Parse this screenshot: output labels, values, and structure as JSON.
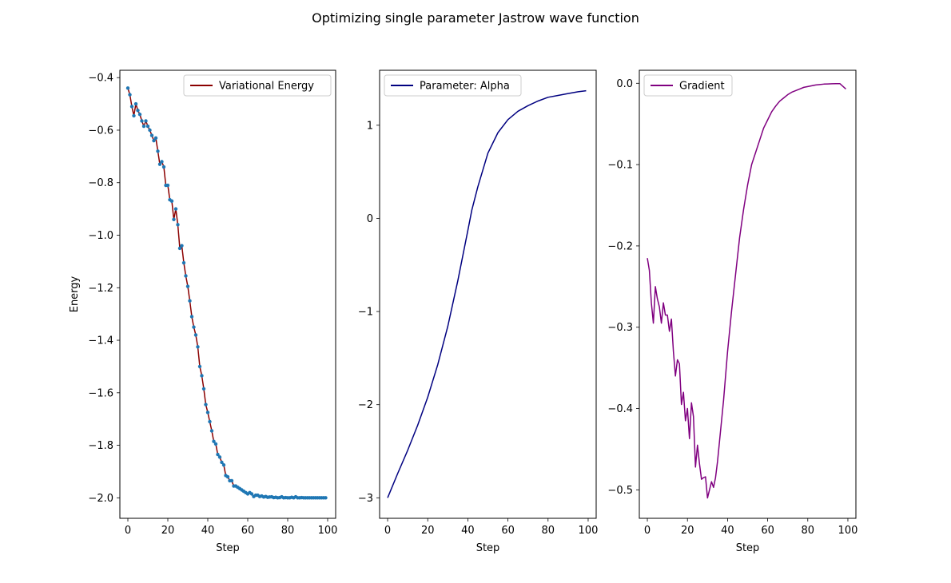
{
  "figure": {
    "suptitle": "Optimizing single parameter Jastrow wave function"
  },
  "chart_data": [
    {
      "type": "line",
      "xlabel": "Step",
      "ylabel": "Energy",
      "xlim": [
        -4,
        104
      ],
      "ylim": [
        -2.078,
        -0.372
      ],
      "xticks": [
        0,
        20,
        40,
        60,
        80,
        100
      ],
      "yticks": [
        -2.0,
        -1.8,
        -1.6,
        -1.4,
        -1.2,
        -1.0,
        -0.8,
        -0.6,
        -0.4
      ],
      "legend_position": "upper right",
      "series": [
        {
          "name": "Variational Energy",
          "color": "#8b0000",
          "marker_color": "#1f77b4",
          "markers": true,
          "x": [
            0,
            1,
            2,
            3,
            4,
            5,
            6,
            7,
            8,
            9,
            10,
            11,
            12,
            13,
            14,
            15,
            16,
            17,
            18,
            19,
            20,
            21,
            22,
            23,
            24,
            25,
            26,
            27,
            28,
            29,
            30,
            31,
            32,
            33,
            34,
            35,
            36,
            37,
            38,
            39,
            40,
            41,
            42,
            43,
            44,
            45,
            46,
            47,
            48,
            49,
            50,
            51,
            52,
            53,
            54,
            55,
            56,
            57,
            58,
            59,
            60,
            61,
            62,
            63,
            64,
            65,
            66,
            67,
            68,
            69,
            70,
            71,
            72,
            73,
            74,
            75,
            76,
            77,
            78,
            79,
            80,
            81,
            82,
            83,
            84,
            85,
            86,
            87,
            88,
            89,
            90,
            91,
            92,
            93,
            94,
            95,
            96,
            97,
            98,
            99
          ],
          "y": [
            -0.44,
            -0.465,
            -0.51,
            -0.545,
            -0.5,
            -0.525,
            -0.54,
            -0.565,
            -0.585,
            -0.565,
            -0.585,
            -0.6,
            -0.62,
            -0.64,
            -0.63,
            -0.68,
            -0.73,
            -0.72,
            -0.74,
            -0.81,
            -0.81,
            -0.865,
            -0.87,
            -0.94,
            -0.9,
            -0.96,
            -1.05,
            -1.04,
            -1.105,
            -1.155,
            -1.195,
            -1.25,
            -1.31,
            -1.35,
            -1.38,
            -1.425,
            -1.5,
            -1.535,
            -1.585,
            -1.645,
            -1.675,
            -1.71,
            -1.745,
            -1.785,
            -1.795,
            -1.835,
            -1.845,
            -1.865,
            -1.875,
            -1.915,
            -1.92,
            -1.935,
            -1.935,
            -1.955,
            -1.955,
            -1.96,
            -1.965,
            -1.97,
            -1.975,
            -1.98,
            -1.985,
            -1.98,
            -1.985,
            -1.995,
            -1.99,
            -1.99,
            -1.995,
            -1.993,
            -1.997,
            -1.995,
            -1.998,
            -1.997,
            -1.996,
            -1.999,
            -1.998,
            -2.0,
            -1.999,
            -1.996,
            -2.0,
            -1.999,
            -2.0,
            -2.0,
            -1.998,
            -2.0,
            -1.996,
            -2.0,
            -2.0,
            -1.999,
            -2.0,
            -2.0,
            -2.0,
            -2.0,
            -2.0,
            -2.0,
            -2.0,
            -2.0,
            -2.0,
            -2.0,
            -2.0,
            -2.0
          ]
        }
      ]
    },
    {
      "type": "line",
      "xlabel": "Step",
      "ylabel": "",
      "xlim": [
        -4,
        104
      ],
      "ylim": [
        -3.22,
        1.59
      ],
      "xticks": [
        0,
        20,
        40,
        60,
        80,
        100
      ],
      "yticks": [
        -3,
        -2,
        -1,
        0,
        1
      ],
      "legend_position": "upper left",
      "series": [
        {
          "name": "Parameter: Alpha",
          "color": "#000080",
          "markers": false,
          "x": [
            0,
            5,
            10,
            15,
            20,
            25,
            30,
            35,
            40,
            42,
            45,
            50,
            55,
            60,
            65,
            70,
            75,
            80,
            85,
            90,
            95,
            99
          ],
          "y": [
            -3.0,
            -2.74,
            -2.49,
            -2.22,
            -1.92,
            -1.57,
            -1.16,
            -0.67,
            -0.13,
            0.09,
            0.34,
            0.7,
            0.92,
            1.06,
            1.15,
            1.21,
            1.26,
            1.3,
            1.32,
            1.34,
            1.36,
            1.37
          ]
        }
      ]
    },
    {
      "type": "line",
      "xlabel": "Step",
      "ylabel": "",
      "xlim": [
        -4,
        104
      ],
      "ylim": [
        -0.535,
        0.016
      ],
      "xticks": [
        0,
        20,
        40,
        60,
        80,
        100
      ],
      "yticks": [
        -0.5,
        -0.4,
        -0.3,
        -0.2,
        -0.1,
        0.0
      ],
      "legend_position": "upper left",
      "series": [
        {
          "name": "Gradient",
          "color": "#800080",
          "markers": false,
          "x": [
            0,
            1,
            2,
            3,
            4,
            5,
            6,
            7,
            8,
            9,
            10,
            11,
            12,
            13,
            14,
            15,
            16,
            17,
            18,
            19,
            20,
            21,
            22,
            23,
            24,
            25,
            26,
            27,
            28,
            29,
            30,
            31,
            32,
            33,
            34,
            35,
            36,
            37,
            38,
            40,
            42,
            44,
            46,
            48,
            50,
            52,
            54,
            56,
            58,
            60,
            62,
            64,
            66,
            68,
            70,
            72,
            74,
            76,
            78,
            80,
            82,
            84,
            86,
            88,
            90,
            92,
            94,
            96,
            99
          ],
          "y": [
            -0.215,
            -0.23,
            -0.27,
            -0.295,
            -0.25,
            -0.265,
            -0.275,
            -0.295,
            -0.27,
            -0.285,
            -0.285,
            -0.305,
            -0.29,
            -0.33,
            -0.36,
            -0.34,
            -0.345,
            -0.395,
            -0.38,
            -0.415,
            -0.4,
            -0.437,
            -0.393,
            -0.41,
            -0.472,
            -0.445,
            -0.468,
            -0.487,
            -0.485,
            -0.484,
            -0.51,
            -0.5,
            -0.49,
            -0.497,
            -0.485,
            -0.465,
            -0.44,
            -0.415,
            -0.39,
            -0.33,
            -0.28,
            -0.235,
            -0.19,
            -0.155,
            -0.125,
            -0.1,
            -0.085,
            -0.07,
            -0.055,
            -0.045,
            -0.035,
            -0.028,
            -0.022,
            -0.018,
            -0.014,
            -0.011,
            -0.009,
            -0.007,
            -0.005,
            -0.004,
            -0.003,
            -0.002,
            -0.0015,
            -0.001,
            -0.0008,
            -0.0006,
            -0.0005,
            -0.0004,
            -0.007
          ]
        }
      ]
    }
  ]
}
